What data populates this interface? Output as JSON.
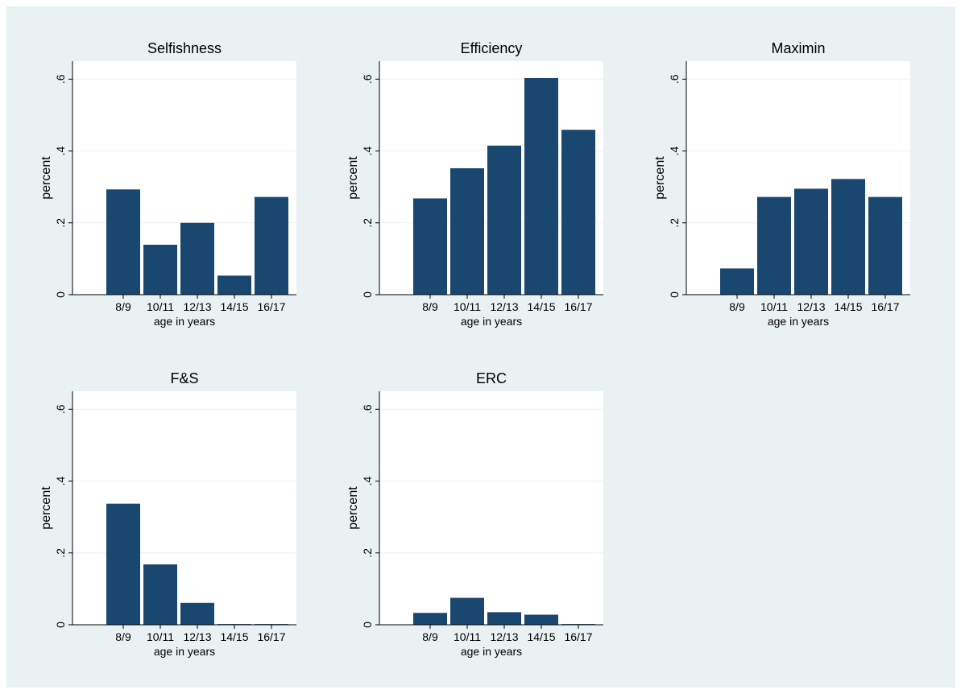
{
  "colors": {
    "outer_bg": "#eaf1f3",
    "plot_bg": "#ffffff",
    "bar_fill": "#1a476f",
    "grid": "#eaf1f3",
    "axis": "#000000"
  },
  "chart_data": [
    {
      "type": "bar",
      "title": "Selfishness",
      "categories": [
        "8/9",
        "10/11",
        "12/13",
        "14/15",
        "16/17"
      ],
      "values": [
        0.293,
        0.139,
        0.2,
        0.053,
        0.272
      ],
      "xlabel": "age in years",
      "ylabel": "percent",
      "ylim": [
        0,
        0.65
      ],
      "yticks": [
        0,
        0.2,
        0.4,
        0.6
      ],
      "ytick_labels": [
        "0",
        ".2",
        ".4",
        ".6"
      ],
      "grid": true
    },
    {
      "type": "bar",
      "title": "Efficiency",
      "categories": [
        "8/9",
        "10/11",
        "12/13",
        "14/15",
        "16/17"
      ],
      "values": [
        0.268,
        0.352,
        0.415,
        0.603,
        0.459
      ],
      "xlabel": "age in years",
      "ylabel": "percent",
      "ylim": [
        0,
        0.65
      ],
      "yticks": [
        0,
        0.2,
        0.4,
        0.6
      ],
      "ytick_labels": [
        "0",
        ".2",
        ".4",
        ".6"
      ],
      "grid": true
    },
    {
      "type": "bar",
      "title": "Maximin",
      "categories": [
        "8/9",
        "10/11",
        "12/13",
        "14/15",
        "16/17"
      ],
      "values": [
        0.073,
        0.272,
        0.295,
        0.322,
        0.272
      ],
      "xlabel": "age in years",
      "ylabel": "percent",
      "ylim": [
        0,
        0.65
      ],
      "yticks": [
        0,
        0.2,
        0.4,
        0.6
      ],
      "ytick_labels": [
        "0",
        ".2",
        ".4",
        ".6"
      ],
      "grid": true
    },
    {
      "type": "bar",
      "title": "F&S",
      "categories": [
        "8/9",
        "10/11",
        "12/13",
        "14/15",
        "16/17"
      ],
      "values": [
        0.337,
        0.168,
        0.061,
        0.002,
        0.002
      ],
      "xlabel": "age in years",
      "ylabel": "percent",
      "ylim": [
        0,
        0.65
      ],
      "yticks": [
        0,
        0.2,
        0.4,
        0.6
      ],
      "ytick_labels": [
        "0",
        ".2",
        ".4",
        ".6"
      ],
      "grid": true
    },
    {
      "type": "bar",
      "title": "ERC",
      "categories": [
        "8/9",
        "10/11",
        "12/13",
        "14/15",
        "16/17"
      ],
      "values": [
        0.033,
        0.075,
        0.035,
        0.028,
        0.002
      ],
      "xlabel": "age in years",
      "ylabel": "percent",
      "ylim": [
        0,
        0.65
      ],
      "yticks": [
        0,
        0.2,
        0.4,
        0.6
      ],
      "ytick_labels": [
        "0",
        ".2",
        ".4",
        ".6"
      ],
      "grid": true
    }
  ]
}
